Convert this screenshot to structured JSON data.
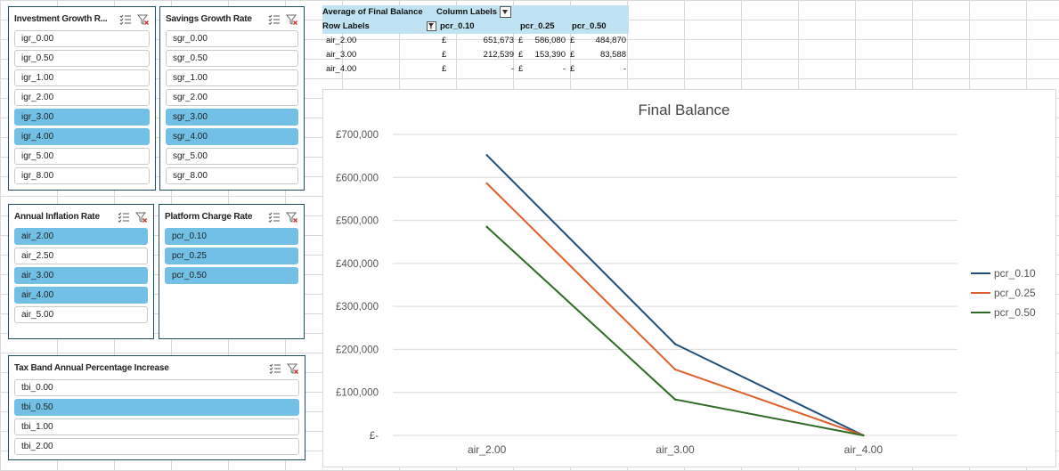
{
  "slicers": {
    "igr": {
      "title": "Investment Growth R...",
      "items": [
        {
          "label": "igr_0.00",
          "selected": false
        },
        {
          "label": "igr_0.50",
          "selected": false
        },
        {
          "label": "igr_1.00",
          "selected": false
        },
        {
          "label": "igr_2.00",
          "selected": false
        },
        {
          "label": "igr_3.00",
          "selected": true
        },
        {
          "label": "igr_4.00",
          "selected": true
        },
        {
          "label": "igr_5.00",
          "selected": false
        },
        {
          "label": "igr_8.00",
          "selected": false
        }
      ]
    },
    "sgr": {
      "title": "Savings Growth Rate",
      "items": [
        {
          "label": "sgr_0.00",
          "selected": false
        },
        {
          "label": "sgr_0.50",
          "selected": false
        },
        {
          "label": "sgr_1.00",
          "selected": false
        },
        {
          "label": "sgr_2.00",
          "selected": false
        },
        {
          "label": "sgr_3.00",
          "selected": true
        },
        {
          "label": "sgr_4.00",
          "selected": true
        },
        {
          "label": "sgr_5.00",
          "selected": false
        },
        {
          "label": "sgr_8.00",
          "selected": false
        }
      ]
    },
    "air": {
      "title": "Annual Inflation Rate",
      "items": [
        {
          "label": "air_2.00",
          "selected": true
        },
        {
          "label": "air_2.50",
          "selected": false
        },
        {
          "label": "air_3.00",
          "selected": true
        },
        {
          "label": "air_4.00",
          "selected": true
        },
        {
          "label": "air_5.00",
          "selected": false
        }
      ]
    },
    "pcr": {
      "title": "Platform Charge Rate",
      "items": [
        {
          "label": "pcr_0.10",
          "selected": true
        },
        {
          "label": "pcr_0.25",
          "selected": true
        },
        {
          "label": "pcr_0.50",
          "selected": true
        }
      ]
    },
    "tbi": {
      "title": "Tax Band Annual Percentage Increase",
      "items": [
        {
          "label": "tbi_0.00",
          "selected": false
        },
        {
          "label": "tbi_0.50",
          "selected": true
        },
        {
          "label": "tbi_1.00",
          "selected": false
        },
        {
          "label": "tbi_2.00",
          "selected": false
        }
      ]
    }
  },
  "pivot": {
    "value_header": "Average of Final Balance",
    "column_labels": "Column Labels",
    "row_labels": "Row Labels",
    "columns": [
      "pcr_0.10",
      "pcr_0.25",
      "pcr_0.50"
    ],
    "rows": [
      {
        "label": "air_2.00",
        "cells": [
          {
            "cur": "£",
            "val": "651,673"
          },
          {
            "cur": "£",
            "val": "586,080"
          },
          {
            "cur": "£",
            "val": "484,870"
          }
        ]
      },
      {
        "label": "air_3.00",
        "cells": [
          {
            "cur": "£",
            "val": "212,539"
          },
          {
            "cur": "£",
            "val": "153,390"
          },
          {
            "cur": "£",
            "val": "83,588"
          }
        ]
      },
      {
        "label": "air_4.00",
        "cells": [
          {
            "cur": "£",
            "val": "-"
          },
          {
            "cur": "£",
            "val": "-"
          },
          {
            "cur": "£",
            "val": "-"
          }
        ]
      }
    ]
  },
  "chart_data": {
    "type": "line",
    "title": "Final Balance",
    "categories": [
      "air_2.00",
      "air_3.00",
      "air_4.00"
    ],
    "series": [
      {
        "name": "pcr_0.10",
        "color": "#1f4e79",
        "values": [
          651673,
          212539,
          0
        ]
      },
      {
        "name": "pcr_0.25",
        "color": "#e0602b",
        "values": [
          586080,
          153390,
          0
        ]
      },
      {
        "name": "pcr_0.50",
        "color": "#2e6b24",
        "values": [
          484870,
          83588,
          0
        ]
      }
    ],
    "ylim": [
      0,
      700000
    ],
    "yticks": [
      0,
      100000,
      200000,
      300000,
      400000,
      500000,
      600000,
      700000
    ],
    "ytick_labels": [
      "£-",
      "£100,000",
      "£200,000",
      "£300,000",
      "£400,000",
      "£500,000",
      "£600,000",
      "£700,000"
    ],
    "grid": true,
    "legend_position": "right"
  }
}
